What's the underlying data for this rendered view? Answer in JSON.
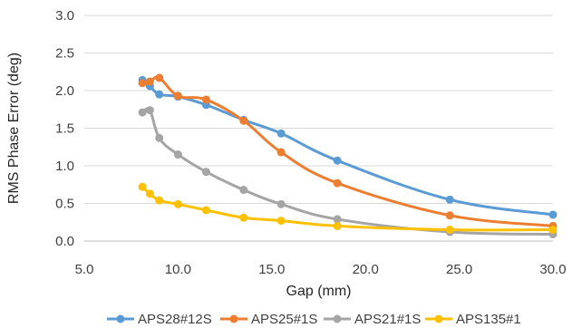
{
  "chart_data": {
    "type": "line",
    "xlabel": "Gap (mm)",
    "ylabel": "RMS Phase Error (deg)",
    "xlim": [
      5.0,
      30.0
    ],
    "ylim": [
      0.0,
      3.0
    ],
    "xticks": [
      "5.0",
      "10.0",
      "15.0",
      "20.0",
      "25.0",
      "30.0"
    ],
    "yticks": [
      "0.0",
      "0.5",
      "1.0",
      "1.5",
      "2.0",
      "2.5",
      "3.0"
    ],
    "grid": "horizontal",
    "legend_position": "bottom",
    "series": [
      {
        "name": "APS28#12S",
        "color": "#5B9BD5",
        "points": [
          [
            8.1,
            2.14
          ],
          [
            8.5,
            2.06
          ],
          [
            9.0,
            1.95
          ],
          [
            10.0,
            1.92
          ],
          [
            11.5,
            1.81
          ],
          [
            13.5,
            1.61
          ],
          [
            15.5,
            1.43
          ],
          [
            18.5,
            1.07
          ],
          [
            24.5,
            0.55
          ],
          [
            30.0,
            0.35
          ]
        ]
      },
      {
        "name": "APS25#1S",
        "color": "#ED7D31",
        "points": [
          [
            8.1,
            2.1
          ],
          [
            8.5,
            2.12
          ],
          [
            9.0,
            2.17
          ],
          [
            10.0,
            1.93
          ],
          [
            11.5,
            1.88
          ],
          [
            13.5,
            1.6
          ],
          [
            15.5,
            1.18
          ],
          [
            18.5,
            0.77
          ],
          [
            24.5,
            0.34
          ],
          [
            30.0,
            0.2
          ]
        ]
      },
      {
        "name": "APS21#1S",
        "color": "#A5A5A5",
        "points": [
          [
            8.1,
            1.71
          ],
          [
            8.5,
            1.74
          ],
          [
            9.0,
            1.37
          ],
          [
            10.0,
            1.15
          ],
          [
            11.5,
            0.92
          ],
          [
            13.5,
            0.68
          ],
          [
            15.5,
            0.49
          ],
          [
            18.5,
            0.29
          ],
          [
            24.5,
            0.12
          ],
          [
            30.0,
            0.09
          ]
        ]
      },
      {
        "name": "APS135#1",
        "color": "#FFC000",
        "points": [
          [
            8.1,
            0.72
          ],
          [
            8.5,
            0.63
          ],
          [
            9.0,
            0.54
          ],
          [
            10.0,
            0.49
          ],
          [
            11.5,
            0.41
          ],
          [
            13.5,
            0.31
          ],
          [
            15.5,
            0.27
          ],
          [
            18.5,
            0.2
          ],
          [
            24.5,
            0.15
          ],
          [
            30.0,
            0.15
          ]
        ]
      }
    ]
  }
}
